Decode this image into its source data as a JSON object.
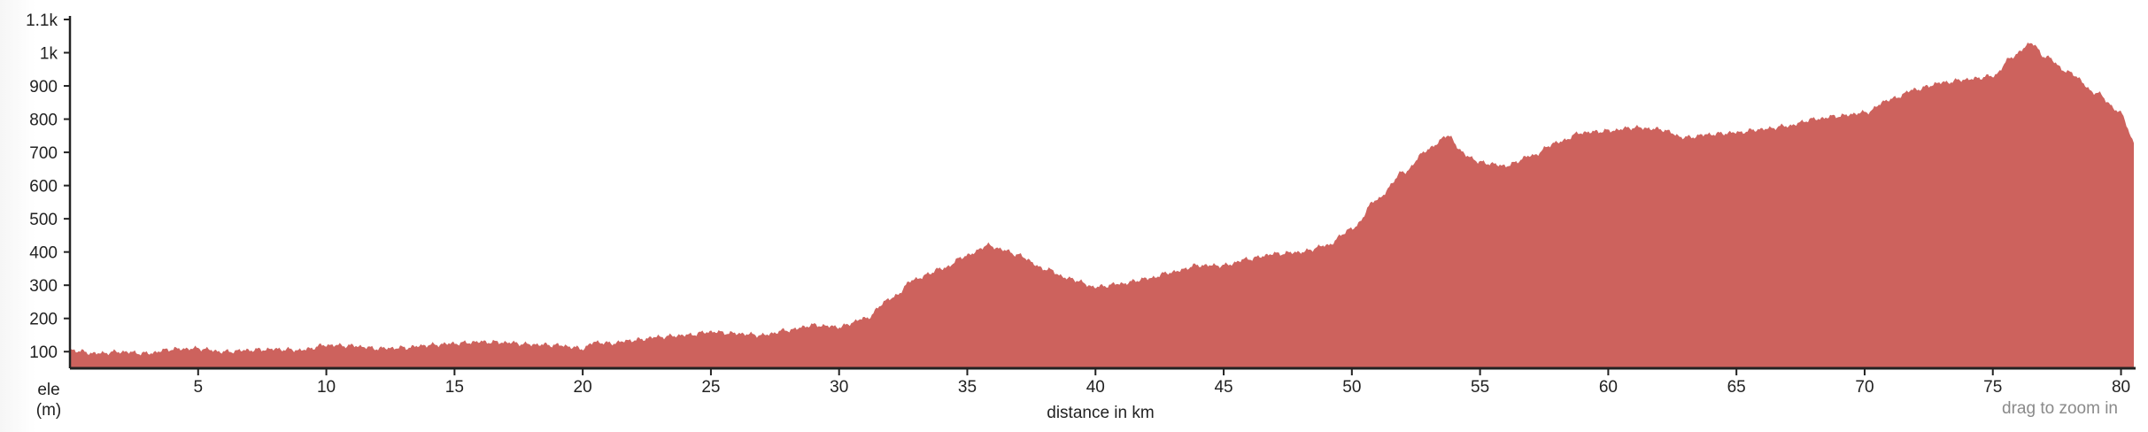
{
  "chart_data": {
    "type": "area",
    "title": "",
    "xlabel": "distance in km",
    "ylabel": "ele",
    "ylabel_unit": "(m)",
    "hint": "drag to zoom in",
    "xlim": [
      0,
      80.5
    ],
    "ylim": [
      50,
      1100
    ],
    "grid": false,
    "legend": "none",
    "fill_color": "#cd625d",
    "axis_color": "#222222",
    "x_ticks": [
      5,
      10,
      15,
      20,
      25,
      30,
      35,
      40,
      45,
      50,
      55,
      60,
      65,
      70,
      75,
      80
    ],
    "y_ticks": [
      {
        "value": 100,
        "label": "100"
      },
      {
        "value": 200,
        "label": "200"
      },
      {
        "value": 300,
        "label": "300"
      },
      {
        "value": 400,
        "label": "400"
      },
      {
        "value": 500,
        "label": "500"
      },
      {
        "value": 600,
        "label": "600"
      },
      {
        "value": 700,
        "label": "700"
      },
      {
        "value": 800,
        "label": "800"
      },
      {
        "value": 900,
        "label": "900"
      },
      {
        "value": 1000,
        "label": "1k"
      },
      {
        "value": 1100,
        "label": "1.1k"
      }
    ],
    "x": [
      0,
      1,
      2,
      3,
      4,
      5,
      6,
      7,
      8,
      9,
      10,
      11,
      12,
      13,
      14,
      15,
      16,
      17,
      18,
      19,
      20,
      20.5,
      21,
      22,
      23,
      24,
      25,
      26,
      27,
      28,
      29,
      30,
      31,
      32,
      33,
      34,
      35,
      35.8,
      36.5,
      37,
      38,
      39,
      40,
      41,
      42,
      43,
      44,
      45,
      46,
      47,
      48,
      49,
      50,
      51,
      52,
      53,
      53.7,
      54.5,
      55,
      56,
      57,
      58,
      59,
      60,
      61,
      62,
      63,
      64,
      65,
      66,
      67,
      68,
      69,
      70,
      71,
      72,
      73,
      74,
      75,
      75.8,
      76.5,
      77,
      78,
      79,
      80,
      80.5
    ],
    "values": [
      105,
      95,
      100,
      95,
      108,
      110,
      100,
      105,
      108,
      105,
      120,
      118,
      110,
      112,
      120,
      125,
      130,
      128,
      122,
      120,
      110,
      130,
      125,
      135,
      145,
      150,
      160,
      155,
      150,
      165,
      180,
      175,
      200,
      260,
      320,
      350,
      390,
      420,
      405,
      390,
      350,
      320,
      295,
      305,
      320,
      340,
      360,
      360,
      380,
      395,
      400,
      420,
      470,
      560,
      640,
      710,
      750,
      690,
      670,
      660,
      690,
      730,
      760,
      765,
      775,
      770,
      745,
      755,
      760,
      770,
      780,
      800,
      810,
      820,
      860,
      890,
      910,
      920,
      930,
      990,
      1030,
      990,
      940,
      880,
      820,
      730
    ]
  }
}
